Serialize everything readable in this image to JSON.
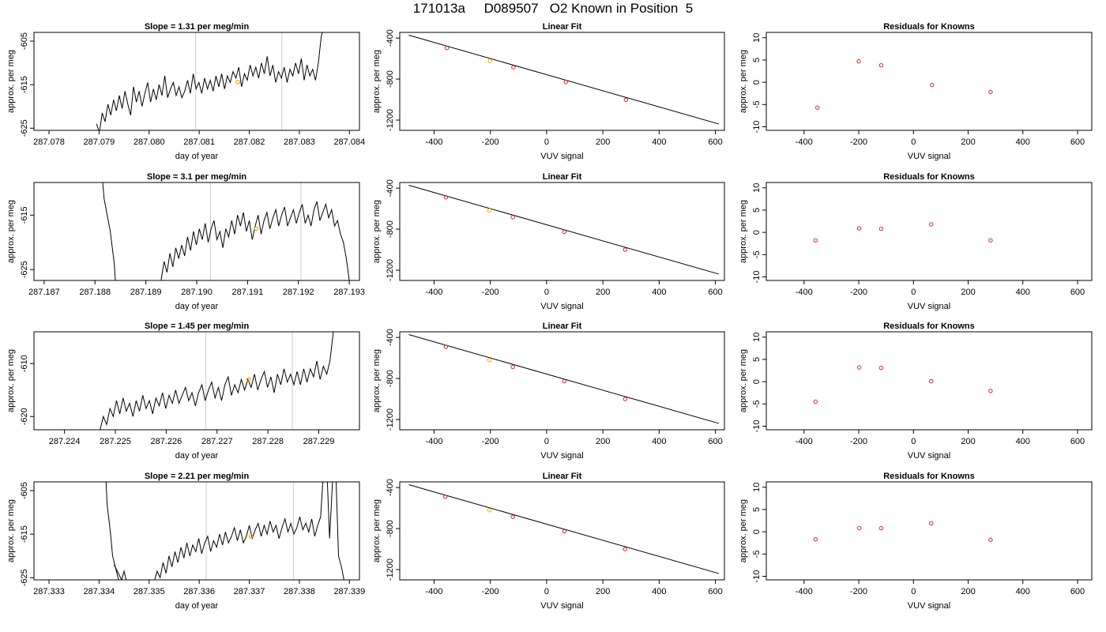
{
  "title": "171013a     D089507   O2 Known in Position  5",
  "chart_data": [
    {
      "type": "line",
      "title": "Slope =  1.31  per meg/min",
      "xlabel": "day of year",
      "ylabel": "approx. per meg",
      "xlim": [
        287.0777,
        287.0842
      ],
      "ylim": [
        -625.5,
        -603
      ],
      "xticks": [
        "287.078",
        "287.079",
        "287.080",
        "287.081",
        "287.082",
        "287.083",
        "287.084"
      ],
      "yticks": [
        "-605",
        "-615",
        "-625"
      ],
      "vlines": [
        287.08093,
        287.08265
      ],
      "marker": {
        "x": 287.08177,
        "y": -614.4
      },
      "x_start": 287.07895,
      "x_end": 287.08355,
      "y_values": [
        -624.0,
        -626.0,
        -621.5,
        -623.5,
        -619.5,
        -622.0,
        -618.5,
        -621.0,
        -617.5,
        -620.5,
        -616.5,
        -619.5,
        -622.0,
        -615.5,
        -619.0,
        -616.5,
        -620.0,
        -617.0,
        -614.5,
        -619.0,
        -616.0,
        -618.5,
        -615.0,
        -617.5,
        -613.0,
        -618.0,
        -616.0,
        -614.5,
        -617.5,
        -615.5,
        -618.0,
        -616.5,
        -614.0,
        -617.0,
        -612.5,
        -616.0,
        -614.5,
        -617.0,
        -613.5,
        -616.0,
        -614.0,
        -616.5,
        -613.0,
        -615.5,
        -612.5,
        -616.0,
        -613.0,
        -614.5,
        -612.0,
        -613.5,
        -611.0,
        -615.5,
        -612.5,
        -614.0,
        -610.5,
        -613.0,
        -611.0,
        -613.5,
        -610.0,
        -612.5,
        -608.5,
        -613.0,
        -610.5,
        -614.5,
        -612.0,
        -613.5,
        -611.0,
        -614.5,
        -611.5,
        -613.0,
        -610.0,
        -612.5,
        -609.0,
        -614.0,
        -610.5,
        -613.0,
        -611.5,
        -614.0,
        -610.0,
        -604.0,
        -601.0,
        -598.0
      ],
      "trace": "main"
    },
    {
      "type": "scatter",
      "title": "Linear Fit",
      "xlabel": "VUV signal",
      "ylabel": "approx. per meg",
      "xlim": [
        -522,
        632
      ],
      "ylim": [
        -1300,
        -345
      ],
      "xticks": [
        "-400",
        "-200",
        "0",
        "200",
        "400",
        "600"
      ],
      "yticks": [
        "-400",
        "-800",
        "-1200"
      ],
      "fit_line": [
        [
          -490,
          -372
        ],
        [
          612,
          -1238
        ]
      ],
      "points": [
        [
          -355,
          -497
        ],
        [
          -201,
          -622
        ],
        [
          -118,
          -685
        ],
        [
          68,
          -829
        ],
        [
          282,
          -1002
        ]
      ],
      "orange_index": 1
    },
    {
      "type": "scatter",
      "title": "Residuals for Knowns",
      "xlabel": "VUV signal",
      "ylabel": "approx. per meg",
      "xlim": [
        -538,
        652
      ],
      "ylim": [
        -10.8,
        11.2
      ],
      "xticks": [
        "-400",
        "-200",
        "0",
        "200",
        "400",
        "600"
      ],
      "yticks": [
        "10",
        "5",
        "0",
        "-5",
        "-10"
      ],
      "points": [
        [
          -351,
          -5.7
        ],
        [
          -200,
          4.7
        ],
        [
          -118,
          3.8
        ],
        [
          68,
          -0.6
        ],
        [
          282,
          -2.2
        ]
      ]
    },
    {
      "type": "line",
      "title": "Slope =  3.1  per meg/min",
      "xlabel": "day of year",
      "ylabel": "approx. per meg",
      "xlim": [
        287.1868,
        287.1932
      ],
      "ylim": [
        -627,
        -609
      ],
      "xticks": [
        "287.187",
        "287.188",
        "287.189",
        "287.190",
        "287.191",
        "287.192",
        "287.193"
      ],
      "yticks": [
        "-615",
        "-625"
      ],
      "vlines": [
        287.19027,
        287.19205
      ],
      "marker": {
        "x": 287.19117,
        "y": -617.5
      },
      "x_start": 287.1893,
      "x_end": 287.193,
      "y_values": [
        -627.0,
        -623.5,
        -625.5,
        -622.0,
        -624.5,
        -621.0,
        -623.0,
        -620.5,
        -622.5,
        -619.0,
        -621.5,
        -618.0,
        -620.5,
        -617.5,
        -619.5,
        -616.5,
        -620.0,
        -617.5,
        -616.0,
        -619.5,
        -618.0,
        -621.0,
        -617.5,
        -619.0,
        -616.0,
        -618.5,
        -615.0,
        -617.0,
        -614.5,
        -618.0,
        -616.0,
        -619.5,
        -617.0,
        -615.0,
        -618.5,
        -616.0,
        -614.5,
        -617.5,
        -615.5,
        -614.0,
        -617.0,
        -615.0,
        -613.5,
        -617.0,
        -615.5,
        -614.0,
        -616.5,
        -614.5,
        -613.0,
        -616.5,
        -615.0,
        -617.0,
        -614.0,
        -612.5,
        -616.0,
        -614.5,
        -613.0,
        -615.5,
        -614.0,
        -617.0,
        -616.0,
        -618.5,
        -620.0,
        -623.0,
        -627.0
      ],
      "trace": "main",
      "drop": [
        [
          287.18815,
          -608.8
        ],
        [
          287.18818,
          -612.0
        ],
        [
          287.1883,
          -618.0
        ],
        [
          287.18838,
          -624.0
        ],
        [
          287.1884,
          -627.0
        ]
      ]
    },
    {
      "type": "scatter",
      "title": "Linear Fit",
      "xlabel": "VUV signal",
      "ylabel": "approx. per meg",
      "xlim": [
        -522,
        632
      ],
      "ylim": [
        -1300,
        -345
      ],
      "xticks": [
        "-400",
        "-200",
        "0",
        "200",
        "400",
        "600"
      ],
      "yticks": [
        "-400",
        "-800",
        "-1200"
      ],
      "fit_line": [
        [
          -490,
          -372
        ],
        [
          612,
          -1238
        ]
      ],
      "points": [
        [
          -358,
          -489
        ],
        [
          -203,
          -617
        ],
        [
          -120,
          -683
        ],
        [
          63,
          -826
        ],
        [
          279,
          -1000
        ]
      ],
      "orange_index": 1
    },
    {
      "type": "scatter",
      "title": "Residuals for Knowns",
      "xlabel": "VUV signal",
      "ylabel": "approx. per meg",
      "xlim": [
        -538,
        652
      ],
      "ylim": [
        -10.8,
        11.2
      ],
      "xticks": [
        "-400",
        "-200",
        "0",
        "200",
        "400",
        "600"
      ],
      "yticks": [
        "10",
        "5",
        "0",
        "-5",
        "-10"
      ],
      "points": [
        [
          -358,
          -1.8
        ],
        [
          -198,
          0.9
        ],
        [
          -118,
          0.8
        ],
        [
          65,
          1.8
        ],
        [
          282,
          -1.8
        ]
      ]
    },
    {
      "type": "line",
      "title": "Slope =  1.45  per meg/min",
      "xlabel": "day of year",
      "ylabel": "approx. per meg",
      "xlim": [
        287.2234,
        287.2298
      ],
      "ylim": [
        -622.5,
        -604
      ],
      "xticks": [
        "287.224",
        "287.225",
        "287.226",
        "287.227",
        "287.228",
        "287.229"
      ],
      "yticks": [
        "-610",
        "-620"
      ],
      "vlines": [
        287.22678,
        287.22848
      ],
      "marker": {
        "x": 287.22762,
        "y": -613.0
      },
      "x_start": 287.2247,
      "x_end": 287.22935,
      "y_values": [
        -622.5,
        -620.0,
        -621.5,
        -618.5,
        -620.0,
        -617.0,
        -619.5,
        -616.5,
        -619.0,
        -617.5,
        -620.0,
        -617.0,
        -619.0,
        -616.0,
        -618.5,
        -617.0,
        -619.5,
        -616.5,
        -618.0,
        -615.5,
        -618.5,
        -616.0,
        -617.5,
        -615.0,
        -617.5,
        -616.0,
        -614.5,
        -617.0,
        -615.5,
        -618.0,
        -615.5,
        -614.0,
        -617.0,
        -615.0,
        -613.5,
        -616.5,
        -614.5,
        -617.0,
        -614.0,
        -612.5,
        -616.0,
        -614.0,
        -615.5,
        -613.0,
        -615.0,
        -613.0,
        -614.5,
        -612.0,
        -615.0,
        -613.0,
        -611.5,
        -614.5,
        -612.5,
        -615.5,
        -612.0,
        -614.0,
        -611.0,
        -613.5,
        -612.0,
        -614.0,
        -611.5,
        -614.0,
        -611.0,
        -613.5,
        -611.0,
        -612.5,
        -609.5,
        -613.0,
        -610.5,
        -612.0,
        -609.5,
        -604.0,
        -600.0
      ],
      "trace": "main"
    },
    {
      "type": "scatter",
      "title": "Linear Fit",
      "xlabel": "VUV signal",
      "ylabel": "approx. per meg",
      "xlim": [
        -522,
        632
      ],
      "ylim": [
        -1300,
        -345
      ],
      "xticks": [
        "-400",
        "-200",
        "0",
        "200",
        "400",
        "600"
      ],
      "yticks": [
        "-400",
        "-800",
        "-1200"
      ],
      "fit_line": [
        [
          -490,
          -372
        ],
        [
          612,
          -1238
        ]
      ],
      "points": [
        [
          -358,
          -491
        ],
        [
          -203,
          -620
        ],
        [
          -120,
          -688
        ],
        [
          63,
          -827
        ],
        [
          279,
          -1000
        ]
      ],
      "orange_index": 1
    },
    {
      "type": "scatter",
      "title": "Residuals for Knowns",
      "xlabel": "VUV signal",
      "ylabel": "approx. per meg",
      "xlim": [
        -538,
        652
      ],
      "ylim": [
        -10.8,
        11.2
      ],
      "xticks": [
        "-400",
        "-200",
        "0",
        "200",
        "400",
        "600"
      ],
      "yticks": [
        "10",
        "5",
        "0",
        "-5",
        "-10"
      ],
      "points": [
        [
          -358,
          -4.5
        ],
        [
          -198,
          3.2
        ],
        [
          -118,
          3.1
        ],
        [
          65,
          0.1
        ],
        [
          282,
          -2.1
        ]
      ]
    },
    {
      "type": "line",
      "title": "Slope =  2.21  per meg/min",
      "xlabel": "day of year",
      "ylabel": "approx. per meg",
      "xlim": [
        287.3327,
        287.3392
      ],
      "ylim": [
        -625.5,
        -603
      ],
      "xticks": [
        "287.333",
        "287.334",
        "287.335",
        "287.336",
        "287.337",
        "287.338",
        "287.339"
      ],
      "yticks": [
        "-605",
        "-615",
        "-625"
      ],
      "vlines": [
        287.33614,
        287.33788
      ],
      "marker": {
        "x": 287.33703,
        "y": -615.5
      },
      "x_start": 287.3351,
      "x_end": 287.3389,
      "y_values": [
        -626.0,
        -623.5,
        -625.0,
        -621.5,
        -624.0,
        -620.0,
        -622.5,
        -619.0,
        -621.5,
        -618.0,
        -620.5,
        -617.0,
        -620.0,
        -617.5,
        -619.0,
        -616.0,
        -619.5,
        -617.0,
        -615.5,
        -619.0,
        -616.5,
        -618.0,
        -615.0,
        -617.5,
        -614.5,
        -617.0,
        -615.5,
        -613.5,
        -616.5,
        -614.0,
        -617.0,
        -615.5,
        -613.0,
        -616.0,
        -614.0,
        -612.5,
        -615.5,
        -613.0,
        -615.0,
        -612.0,
        -614.5,
        -613.0,
        -616.0,
        -613.5,
        -611.5,
        -614.5,
        -612.5,
        -615.0,
        -613.5,
        -611.0,
        -614.0,
        -612.5,
        -614.5,
        -611.5,
        -615.5,
        -613.0,
        -611.0,
        -600.0,
        -598.5,
        -616.0,
        -603.0,
        -598.5,
        -620.0,
        -622.5,
        -626.0
      ],
      "trace": "main",
      "drop": [
        [
          287.33414,
          -603.0
        ],
        [
          287.33416,
          -608.0
        ],
        [
          287.33423,
          -615.0
        ],
        [
          287.33427,
          -620.0
        ],
        [
          287.3344,
          -626.0
        ]
      ],
      "extra": [
        [
          287.3343,
          -622.0
        ],
        [
          287.33445,
          -625.5
        ],
        [
          287.3345,
          -623.5
        ],
        [
          287.33455,
          -626.0
        ]
      ]
    },
    {
      "type": "scatter",
      "title": "Linear Fit",
      "xlabel": "VUV signal",
      "ylabel": "approx. per meg",
      "xlim": [
        -522,
        632
      ],
      "ylim": [
        -1300,
        -345
      ],
      "xticks": [
        "-400",
        "-200",
        "0",
        "200",
        "400",
        "600"
      ],
      "yticks": [
        "-400",
        "-800",
        "-1200"
      ],
      "fit_line": [
        [
          -490,
          -372
        ],
        [
          612,
          -1238
        ]
      ],
      "points": [
        [
          -360,
          -490
        ],
        [
          -203,
          -621
        ],
        [
          -120,
          -686
        ],
        [
          63,
          -827
        ],
        [
          279,
          -1000
        ]
      ],
      "orange_index": 1
    },
    {
      "type": "scatter",
      "title": "Residuals for Knowns",
      "xlabel": "VUV signal",
      "ylabel": "approx. per meg",
      "xlim": [
        -538,
        652
      ],
      "ylim": [
        -10.8,
        11.2
      ],
      "xticks": [
        "-400",
        "-200",
        "0",
        "200",
        "400",
        "600"
      ],
      "yticks": [
        "10",
        "5",
        "0",
        "-5",
        "-10"
      ],
      "points": [
        [
          -358,
          -1.7
        ],
        [
          -198,
          0.8
        ],
        [
          -118,
          0.8
        ],
        [
          65,
          1.9
        ],
        [
          282,
          -1.8
        ]
      ]
    }
  ]
}
